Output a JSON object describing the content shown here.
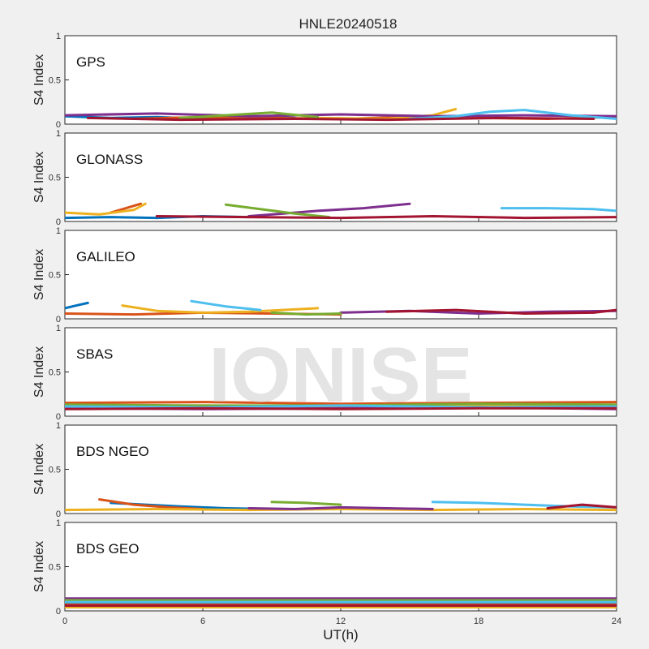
{
  "watermark": "IONISE",
  "chart_data": {
    "type": "line",
    "title": "HNLE20240518",
    "xlabel": "UT(h)",
    "ylabel": "S4 Index",
    "xlim": [
      0,
      24
    ],
    "ylim": [
      0,
      1
    ],
    "x_ticks": [
      "0",
      "6",
      "12",
      "18",
      "24"
    ],
    "y_ticks": [
      "0",
      "0.5",
      "1"
    ],
    "grid": false,
    "series_colors": [
      "#0072BD",
      "#D95319",
      "#EDB120",
      "#7E2F8E",
      "#77AC30",
      "#4DBEEE",
      "#A2142F"
    ],
    "panels": [
      {
        "name": "GPS",
        "series": [
          {
            "x": [
              0,
              2,
              4,
              6,
              8,
              10
            ],
            "y": [
              0.09,
              0.07,
              0.08,
              0.06,
              0.09,
              0.07
            ]
          },
          {
            "x": [
              3,
              6,
              9,
              12,
              15,
              18,
              21,
              24
            ],
            "y": [
              0.06,
              0.08,
              0.07,
              0.06,
              0.08,
              0.07,
              0.06,
              0.08
            ]
          },
          {
            "x": [
              11,
              14,
              16,
              17
            ],
            "y": [
              0.07,
              0.06,
              0.1,
              0.17
            ]
          },
          {
            "x": [
              0,
              4,
              8,
              12,
              16,
              20,
              24
            ],
            "y": [
              0.1,
              0.12,
              0.09,
              0.11,
              0.09,
              0.1,
              0.09
            ]
          },
          {
            "x": [
              5,
              7,
              9,
              11
            ],
            "y": [
              0.07,
              0.1,
              0.13,
              0.08
            ]
          },
          {
            "x": [
              15,
              17,
              18.5,
              20,
              22,
              24
            ],
            "y": [
              0.06,
              0.09,
              0.14,
              0.16,
              0.1,
              0.06
            ]
          },
          {
            "x": [
              1,
              5,
              10,
              14,
              19,
              23
            ],
            "y": [
              0.07,
              0.05,
              0.06,
              0.05,
              0.07,
              0.06
            ]
          }
        ]
      },
      {
        "name": "GLONASS",
        "series": [
          {
            "x": [
              0,
              2,
              4,
              6,
              8
            ],
            "y": [
              0.04,
              0.05,
              0.04,
              0.06,
              0.05
            ]
          },
          {
            "x": [
              2,
              3.3
            ],
            "y": [
              0.1,
              0.2
            ]
          },
          {
            "x": [
              0,
              1.5,
              3,
              3.5
            ],
            "y": [
              0.1,
              0.08,
              0.13,
              0.2
            ]
          },
          {
            "x": [
              8,
              9.5,
              11,
              13,
              15
            ],
            "y": [
              0.06,
              0.09,
              0.12,
              0.15,
              0.2
            ]
          },
          {
            "x": [
              7,
              8.5,
              10,
              11.5
            ],
            "y": [
              0.19,
              0.14,
              0.09,
              0.05
            ]
          },
          {
            "x": [
              19,
              21,
              23,
              24
            ],
            "y": [
              0.15,
              0.15,
              0.14,
              0.12
            ]
          },
          {
            "x": [
              4,
              8,
              12,
              16,
              20,
              24
            ],
            "y": [
              0.06,
              0.05,
              0.04,
              0.06,
              0.04,
              0.05
            ]
          }
        ]
      },
      {
        "name": "GALILEO",
        "series": [
          {
            "x": [
              0,
              0.5,
              1
            ],
            "y": [
              0.12,
              0.15,
              0.18
            ]
          },
          {
            "x": [
              0,
              3,
              6,
              9,
              12
            ],
            "y": [
              0.06,
              0.05,
              0.07,
              0.06,
              0.05
            ]
          },
          {
            "x": [
              2.5,
              4,
              6,
              8,
              11
            ],
            "y": [
              0.15,
              0.09,
              0.07,
              0.08,
              0.12
            ]
          },
          {
            "x": [
              12,
              15,
              18,
              21,
              24
            ],
            "y": [
              0.07,
              0.09,
              0.06,
              0.08,
              0.09
            ]
          },
          {
            "x": [
              9,
              10.5,
              12
            ],
            "y": [
              0.07,
              0.05,
              0.06
            ]
          },
          {
            "x": [
              5.5,
              7,
              8.5
            ],
            "y": [
              0.2,
              0.14,
              0.1
            ]
          },
          {
            "x": [
              14,
              17,
              20,
              23,
              24
            ],
            "y": [
              0.08,
              0.1,
              0.06,
              0.07,
              0.1
            ]
          }
        ]
      },
      {
        "name": "SBAS",
        "series": [
          {
            "x": [
              0,
              6,
              12,
              18,
              24
            ],
            "y": [
              0.12,
              0.1,
              0.13,
              0.11,
              0.12
            ]
          },
          {
            "x": [
              0,
              6,
              12,
              18,
              24
            ],
            "y": [
              0.15,
              0.16,
              0.14,
              0.15,
              0.16
            ]
          },
          {
            "x": [
              0,
              6,
              12,
              18,
              24
            ],
            "y": [
              0.1,
              0.12,
              0.11,
              0.13,
              0.1
            ]
          },
          {
            "x": [
              0,
              6,
              12,
              18,
              24
            ],
            "y": [
              0.09,
              0.08,
              0.09,
              0.1,
              0.08
            ]
          },
          {
            "x": [
              0,
              6,
              12,
              18,
              24
            ],
            "y": [
              0.13,
              0.12,
              0.12,
              0.14,
              0.13
            ]
          },
          {
            "x": [
              0,
              6,
              12,
              18,
              24
            ],
            "y": [
              0.11,
              0.1,
              0.12,
              0.1,
              0.11
            ]
          },
          {
            "x": [
              0,
              6,
              12,
              18,
              24
            ],
            "y": [
              0.08,
              0.09,
              0.08,
              0.09,
              0.09
            ]
          }
        ]
      },
      {
        "name": "BDS NGEO",
        "series": [
          {
            "x": [
              2,
              3.5,
              5,
              7,
              9
            ],
            "y": [
              0.12,
              0.1,
              0.08,
              0.06,
              0.05
            ]
          },
          {
            "x": [
              1.5,
              3,
              4.5,
              6
            ],
            "y": [
              0.16,
              0.1,
              0.07,
              0.05
            ]
          },
          {
            "x": [
              0,
              4,
              8,
              12,
              16,
              20,
              24
            ],
            "y": [
              0.04,
              0.05,
              0.04,
              0.05,
              0.04,
              0.05,
              0.04
            ]
          },
          {
            "x": [
              8,
              10,
              12,
              14,
              16
            ],
            "y": [
              0.06,
              0.05,
              0.07,
              0.06,
              0.05
            ]
          },
          {
            "x": [
              9,
              10.5,
              12
            ],
            "y": [
              0.13,
              0.12,
              0.1
            ]
          },
          {
            "x": [
              16,
              18,
              20,
              22,
              24
            ],
            "y": [
              0.13,
              0.12,
              0.1,
              0.08,
              0.07
            ]
          },
          {
            "x": [
              21,
              22.5,
              24
            ],
            "y": [
              0.06,
              0.1,
              0.07
            ]
          }
        ]
      },
      {
        "name": "BDS GEO",
        "series": [
          {
            "x": [
              0,
              24
            ],
            "y": [
              0.09,
              0.09
            ]
          },
          {
            "x": [
              0,
              24
            ],
            "y": [
              0.07,
              0.07
            ]
          },
          {
            "x": [
              0,
              24
            ],
            "y": [
              0.04,
              0.04
            ]
          },
          {
            "x": [
              0,
              24
            ],
            "y": [
              0.14,
              0.14
            ]
          },
          {
            "x": [
              0,
              24
            ],
            "y": [
              0.12,
              0.12
            ]
          },
          {
            "x": [
              0,
              24
            ],
            "y": [
              0.1,
              0.1
            ]
          },
          {
            "x": [
              0,
              24
            ],
            "y": [
              0.06,
              0.06
            ]
          }
        ]
      }
    ]
  }
}
